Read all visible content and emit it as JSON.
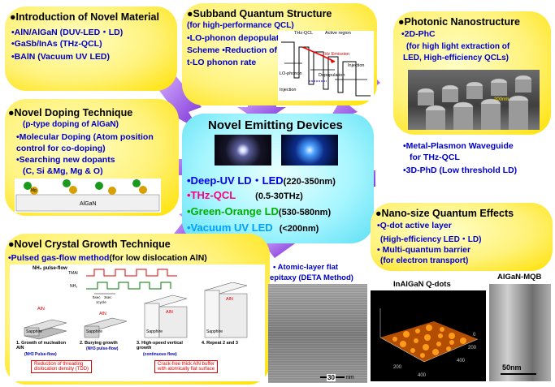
{
  "material": {
    "title": "●Introduction of Novel Material",
    "items": [
      "•AlN/AlGaN (DUV-LED・LD)",
      "•GaSb/InAs (THz-QCL)",
      "•BAlN (Vacuum UV LED)"
    ]
  },
  "subband": {
    "title": "●Subband Quantum Structure",
    "subtitle": "(for high-performance QCL)",
    "line1": "•LO-phonon depopulation",
    "line2": "Scheme  •Reduction of",
    "line3": "t-LO phonon rate",
    "labels": [
      "THz-QCL",
      "Active region",
      "THz Emission",
      "LO-phonon",
      "Depopulation",
      "Injection",
      "Injection"
    ]
  },
  "photonic": {
    "title": "●Photonic Nanostructure",
    "line1": "•2D-PhC",
    "line2": "(for high light extraction of",
    "line3": "LED, High-efficiency QCLs)",
    "scale": "200nm",
    "wave1": "•Metal-Plasmon Waveguide",
    "wave2": "for THz-QCL",
    "wave3": "•3D-PhD (Low threshold LD)"
  },
  "doping": {
    "title": "●Novel Doping Technique",
    "subtitle": "(p-type doping of AlGaN)",
    "line1": "•Molecular Doping (Atom position",
    "line2": "control for co-doping)",
    "line3": "•Searching new dopants",
    "line4": "(C, Si &Mg, Mg & O)",
    "substrate": "AlGaN",
    "atom": "Mg"
  },
  "center": {
    "title": "Novel Emitting Devices",
    "devices": [
      {
        "name": "•Deep-UV LD・LED",
        "range": "(220-350nm)",
        "color": "#0000ee"
      },
      {
        "name": "•THz-QCL",
        "range": "(0.5-30THz)",
        "color": "#ff0080"
      },
      {
        "name": "•Green-Orange LD",
        "range": "(530-580nm)",
        "color": "#00b000"
      },
      {
        "name": "•Vacuum UV LED",
        "range": "(<200nm)",
        "color": "#00a0ff"
      }
    ]
  },
  "nano": {
    "title": "●Nano-size Quantum Effects",
    "line1": "•Q-dot active layer",
    "line2": "(High-efficiency LED・LD)",
    "line3": "• Multi-quantum barrier",
    "line4": "(for electron transport)",
    "qdots": "InAlGaN Q-dots",
    "mqb": "AlGaN-MQB",
    "scale": "50nm",
    "afm_ticks": [
      "200",
      "400",
      "0",
      "200",
      "400"
    ]
  },
  "growth": {
    "title": "●Novel Crystal Growth Technique",
    "subtitle_a": "•Pulsed gas-flow method",
    "subtitle_b": "(for low dislocation AlN)",
    "pulse_label": "NH₃ pulse-flow",
    "tma": "TMAl",
    "nh3": "NH₃",
    "sec1": "5sec",
    "sec2": "3sec",
    "cycle": "1cycle",
    "aln": "AlN",
    "sapphire": "Sapphire",
    "steps": [
      "1.  Growth of nucleation AlN",
      "2.  Burying growth",
      "3.  High-speed vertical growth",
      "4.  Repeat 2 and 3"
    ],
    "steps_sub": [
      "(NH3 Pulse-flow)",
      "(NH3 pulse-flow)",
      "(continuous flow)"
    ],
    "note1": "Reduction of threading",
    "note1b": "dislocation density (TDD)",
    "note2": "Crack-free thick AlN buffer",
    "note2b": "with atomically flat surface"
  },
  "atomic": {
    "label1": "• Atomic-layer flat",
    "label2": "epitaxy (DETA Method)",
    "scale": "30",
    "unit": "nm"
  },
  "colors": {
    "yellow": "#fff27a",
    "cyan": "#8ff0ff",
    "arrow": "#9a4fe6",
    "blue": "#0000cc"
  }
}
